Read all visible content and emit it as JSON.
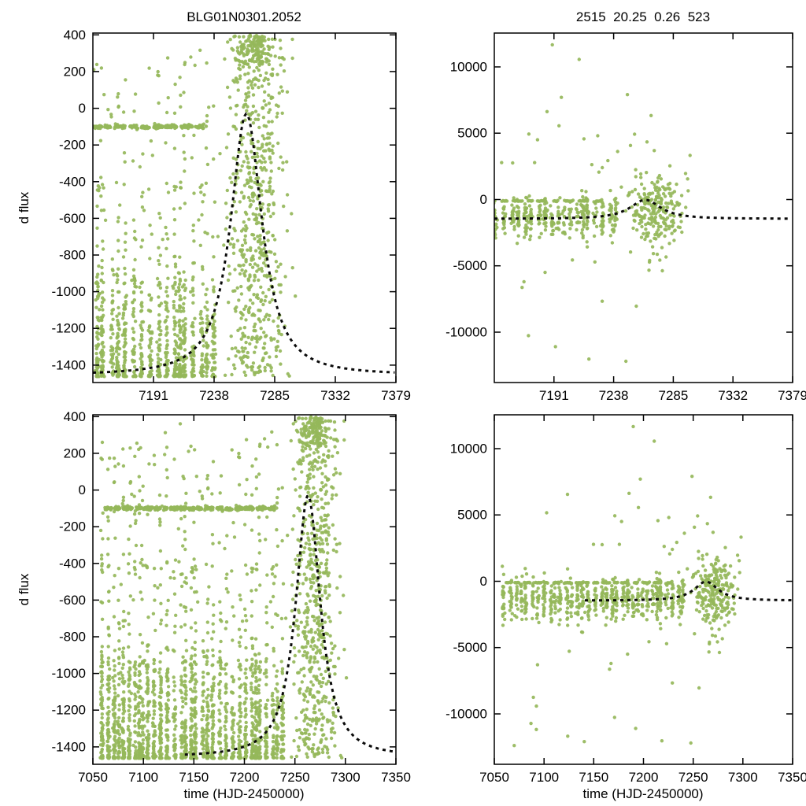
{
  "figure": {
    "background": "#ffffff"
  },
  "titles": {
    "left": "BLG01N0301.2052",
    "right": "2515  20.25  0.26  523"
  },
  "axis_labels": {
    "x": "time (HJD-2450000)",
    "y": "d flux"
  },
  "colors": {
    "points": "#95b75a",
    "model": "#0a0a0a",
    "axis": "#000000",
    "background": "#ffffff"
  },
  "chart_data": {
    "type": "scatter",
    "description": "Microlensing-style difference-flux light curves: green photometric data points with black dashed model fit peaking near t=7263. Left column is flux-zoomed view, right column is wide flux range; top row zoomed in time [7144,7379], bottom row full range [7050,7350].",
    "panels": [
      {
        "id": "top-left",
        "title": "BLG01N0301.2052",
        "dataset": "dflux",
        "xlim": [
          7144,
          7379
        ],
        "ylim": [
          -1495,
          410
        ],
        "xticks": [
          7191,
          7238,
          7285,
          7332,
          7379
        ],
        "yticks": [
          400,
          200,
          0,
          -200,
          -400,
          -600,
          -800,
          -1000,
          -1200,
          -1400
        ],
        "ylabel": "d flux",
        "model": true
      },
      {
        "id": "top-right",
        "title": "2515  20.25  0.26  523",
        "dataset": "dflux_wide",
        "xlim": [
          7144,
          7379
        ],
        "ylim": [
          -13800,
          12550
        ],
        "xticks": [
          7191,
          7238,
          7285,
          7332,
          7379
        ],
        "yticks": [
          10000,
          5000,
          0,
          -5000,
          -10000
        ],
        "model": true
      },
      {
        "id": "bottom-left",
        "dataset": "dflux",
        "xlim": [
          7050,
          7350
        ],
        "ylim": [
          -1495,
          410
        ],
        "xticks": [
          7050,
          7100,
          7150,
          7200,
          7250,
          7300,
          7350
        ],
        "yticks": [
          400,
          200,
          0,
          -200,
          -400,
          -600,
          -800,
          -1000,
          -1200,
          -1400
        ],
        "xlabel": "time (HJD-2450000)",
        "ylabel": "d flux",
        "model": true
      },
      {
        "id": "bottom-right",
        "dataset": "dflux_wide",
        "xlim": [
          7050,
          7350
        ],
        "ylim": [
          -13800,
          12550
        ],
        "xticks": [
          7050,
          7100,
          7150,
          7200,
          7250,
          7300,
          7350
        ],
        "yticks": [
          10000,
          5000,
          0,
          -5000,
          -10000
        ],
        "xlabel": "time (HJD-2450000)",
        "model": true
      }
    ],
    "model_fit": {
      "shape": "peaked-event-curve",
      "base": -1455,
      "peak": -30,
      "t0": 7263,
      "width": 16,
      "power": 1.15,
      "t_start": 7141,
      "t_end": 7390
    },
    "datasets": {
      "dflux": {
        "seed": 12345,
        "clusters": [
          {
            "kind": "stripes",
            "t_start": 7059,
            "t_end": 7243,
            "gap_min": 3.2,
            "gap_max": 7.6,
            "stripe_sigma": 0.7,
            "n_per": 62,
            "y": {
              "mode": "bottomheavy",
              "min": -1462,
              "max": -935,
              "exp": 2.0,
              "up_frac": 0.16,
              "up_max": 280,
              "up_exp": 1.6
            }
          },
          {
            "kind": "hline",
            "t_start": 7062,
            "t_end": 7232,
            "step": 0.32,
            "y": -100,
            "y_sigma": 5,
            "run_on": 6,
            "run_off": 2.5
          },
          {
            "kind": "blob",
            "n": 620,
            "t_center": 7270,
            "t_sigma": 12,
            "t_min": 7246,
            "t_max": 7301,
            "y": {
              "mode": "uniform",
              "min": -1460,
              "max": 395
            }
          },
          {
            "kind": "blob",
            "n": 110,
            "t_center": 7267,
            "t_sigma": 7,
            "t_min": 7250,
            "t_max": 7292,
            "y": {
              "mode": "uniform",
              "min": 240,
              "max": 400
            }
          },
          {
            "kind": "uniform",
            "n": 55,
            "t_min": 7058,
            "t_max": 7248,
            "y_min": -900,
            "y_max": 380
          }
        ]
      },
      "dflux_wide": {
        "seed": 999,
        "clusters": [
          {
            "kind": "stripes",
            "t_start": 7059,
            "t_end": 7243,
            "gap_min": 3.2,
            "gap_max": 7.6,
            "stripe_sigma": 0.7,
            "n_per": 19,
            "y": {
              "mode": "gauss",
              "mean": -1350,
              "sigma": 780,
              "min": -5200,
              "max": 1800
            }
          },
          {
            "kind": "hline",
            "t_start": 7062,
            "t_end": 7228,
            "step": 0.8,
            "y": -110,
            "y_sigma": 18,
            "run_on": 5,
            "run_off": 4
          },
          {
            "kind": "blob",
            "n": 230,
            "t_center": 7270,
            "t_sigma": 11,
            "t_min": 7246,
            "t_max": 7298,
            "y": {
              "mode": "gauss",
              "mean": -850,
              "sigma": 1500,
              "min": -6800,
              "max": 4000
            }
          },
          {
            "kind": "uniform",
            "n": 42,
            "t_min": 7058,
            "t_max": 7300,
            "y_min": -12800,
            "y_max": 12300
          },
          {
            "kind": "uniform",
            "n": 14,
            "t_min": 7150,
            "t_max": 7290,
            "y_min": 2000,
            "y_max": 6800
          }
        ]
      }
    }
  }
}
